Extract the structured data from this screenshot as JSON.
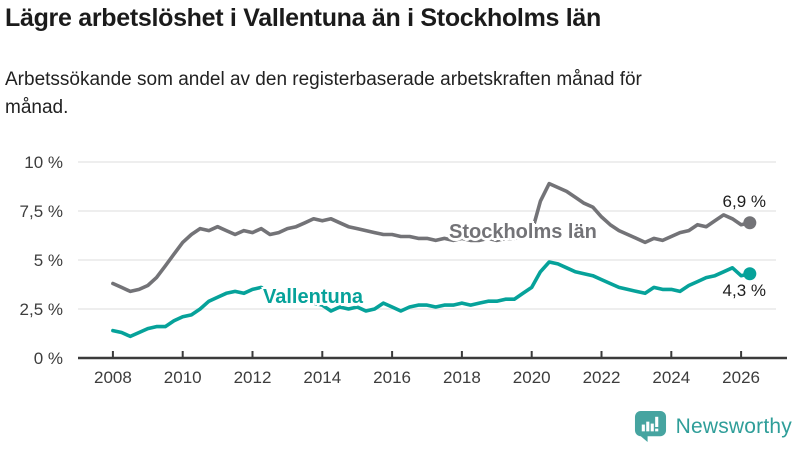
{
  "header": {
    "title": "Lägre arbetslöshet i Vallentuna än i Stockholms län",
    "subtitle": "Arbetssökande som andel av den registerbaserade arbetskraften månad för månad."
  },
  "branding": {
    "name": "Newsworthy",
    "icon": "newsworthy-speech-bubble-bar-chart-icon",
    "icon_color": "#46a4a0",
    "text_color": "#2f9e99"
  },
  "colors": {
    "background": "#ffffff",
    "grid": "#e3e3e3",
    "axis": "#3b3b3b",
    "tick_text": "#3d3d3d",
    "value_label": "#1d1d1d"
  },
  "chart_data": {
    "type": "line",
    "title": "Lägre arbetslöshet i Vallentuna än i Stockholms län",
    "subtitle": "Arbetssökande som andel av den registerbaserade arbetskraften månad för månad.",
    "xlabel": "",
    "ylabel": "",
    "xlim": [
      2007,
      2027
    ],
    "ylim": [
      0,
      10
    ],
    "grid": true,
    "legend_position": "inline-labels",
    "x": [
      2008,
      2008.25,
      2008.5,
      2008.75,
      2009,
      2009.25,
      2009.5,
      2009.75,
      2010,
      2010.25,
      2010.5,
      2010.75,
      2011,
      2011.25,
      2011.5,
      2011.75,
      2012,
      2012.25,
      2012.5,
      2012.75,
      2013,
      2013.25,
      2013.5,
      2013.75,
      2014,
      2014.25,
      2014.5,
      2014.75,
      2015,
      2015.25,
      2015.5,
      2015.75,
      2016,
      2016.25,
      2016.5,
      2016.75,
      2017,
      2017.25,
      2017.5,
      2017.75,
      2018,
      2018.25,
      2018.5,
      2018.75,
      2019,
      2019.25,
      2019.5,
      2019.75,
      2020,
      2020.25,
      2020.5,
      2020.75,
      2021,
      2021.25,
      2021.5,
      2021.75,
      2022,
      2022.25,
      2022.5,
      2022.75,
      2023,
      2023.25,
      2023.5,
      2023.75,
      2024,
      2024.25,
      2024.5,
      2024.75,
      2025,
      2025.25,
      2025.5,
      2025.75,
      2026,
      2026.25
    ],
    "series": [
      {
        "name": "Stockholms län",
        "color": "#737377",
        "end_value": 6.9,
        "end_value_label": "6,9 %",
        "values": [
          3.8,
          3.6,
          3.4,
          3.5,
          3.7,
          4.1,
          4.7,
          5.3,
          5.9,
          6.3,
          6.6,
          6.5,
          6.7,
          6.5,
          6.3,
          6.5,
          6.4,
          6.6,
          6.3,
          6.4,
          6.6,
          6.7,
          6.9,
          7.1,
          7.0,
          7.1,
          6.9,
          6.7,
          6.6,
          6.5,
          6.4,
          6.3,
          6.3,
          6.2,
          6.2,
          6.1,
          6.1,
          6.0,
          6.1,
          6.0,
          6.1,
          6.0,
          6.0,
          6.1,
          6.0,
          6.1,
          6.1,
          6.2,
          6.4,
          8.0,
          8.9,
          8.7,
          8.5,
          8.2,
          7.9,
          7.7,
          7.2,
          6.8,
          6.5,
          6.3,
          6.1,
          5.9,
          6.1,
          6.0,
          6.2,
          6.4,
          6.5,
          6.8,
          6.7,
          7.0,
          7.3,
          7.1,
          6.8,
          6.9
        ]
      },
      {
        "name": "Vallentuna",
        "color": "#06a29a",
        "end_value": 4.3,
        "end_value_label": "4,3 %",
        "values": [
          1.4,
          1.3,
          1.1,
          1.3,
          1.5,
          1.6,
          1.6,
          1.9,
          2.1,
          2.2,
          2.5,
          2.9,
          3.1,
          3.3,
          3.4,
          3.3,
          3.5,
          3.6,
          3.3,
          3.2,
          3.1,
          3.0,
          2.9,
          2.8,
          2.7,
          2.4,
          2.6,
          2.5,
          2.6,
          2.4,
          2.5,
          2.8,
          2.6,
          2.4,
          2.6,
          2.7,
          2.7,
          2.6,
          2.7,
          2.7,
          2.8,
          2.7,
          2.8,
          2.9,
          2.9,
          3.0,
          3.0,
          3.3,
          3.6,
          4.4,
          4.9,
          4.8,
          4.6,
          4.4,
          4.3,
          4.2,
          4.0,
          3.8,
          3.6,
          3.5,
          3.4,
          3.3,
          3.6,
          3.5,
          3.5,
          3.4,
          3.7,
          3.9,
          4.1,
          4.2,
          4.4,
          4.6,
          4.2,
          4.3
        ]
      }
    ],
    "yticks": [
      {
        "value": 0,
        "label": "0 %"
      },
      {
        "value": 2.5,
        "label": "2,5 %"
      },
      {
        "value": 5,
        "label": "5 %"
      },
      {
        "value": 7.5,
        "label": "7,5 %"
      },
      {
        "value": 10,
        "label": "10 %"
      }
    ],
    "xticks": [
      {
        "value": 2008,
        "label": "2008"
      },
      {
        "value": 2010,
        "label": "2010"
      },
      {
        "value": 2012,
        "label": "2012"
      },
      {
        "value": 2014,
        "label": "2014"
      },
      {
        "value": 2016,
        "label": "2016"
      },
      {
        "value": 2018,
        "label": "2018"
      },
      {
        "value": 2020,
        "label": "2020"
      },
      {
        "value": 2022,
        "label": "2022"
      },
      {
        "value": 2024,
        "label": "2024"
      },
      {
        "value": 2026,
        "label": "2026"
      }
    ]
  }
}
